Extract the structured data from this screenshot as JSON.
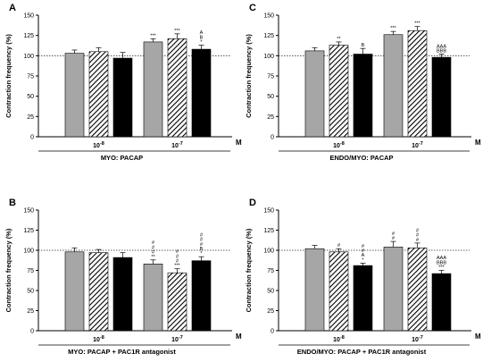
{
  "colors": {
    "bar1": "#a6a6a6",
    "bar2_hatch": "#000000",
    "bar3": "#000000",
    "dotted_ref": "#333333"
  },
  "chart_data": [
    {
      "panel": "A",
      "type": "bar",
      "ylabel": "Contraction frequency (%)",
      "ylim": [
        0,
        150
      ],
      "yticks": [
        0,
        25,
        50,
        75,
        100,
        125,
        150
      ],
      "reference_line": 100,
      "groups": [
        {
          "label_base": "10",
          "label_exp": "-8",
          "values": [
            103,
            105,
            97
          ],
          "errors": [
            4,
            5,
            7
          ],
          "annotations": [
            "",
            "",
            ""
          ]
        },
        {
          "label_base": "10",
          "label_exp": "-7",
          "values": [
            117,
            121,
            108
          ],
          "errors": [
            4,
            6,
            5
          ],
          "annotations": [
            "***",
            "***",
            "A\nB\n*"
          ]
        }
      ],
      "unit": "M",
      "caption": "MYO: PACAP"
    },
    {
      "panel": "C",
      "type": "bar",
      "ylabel": "Contraction frequency (%)",
      "ylim": [
        0,
        150
      ],
      "yticks": [
        0,
        25,
        50,
        75,
        100,
        125,
        150
      ],
      "reference_line": 100,
      "groups": [
        {
          "label_base": "10",
          "label_exp": "-8",
          "values": [
            106,
            113,
            102
          ],
          "errors": [
            4,
            4,
            7
          ],
          "annotations": [
            "",
            "**",
            "B"
          ]
        },
        {
          "label_base": "10",
          "label_exp": "-7",
          "values": [
            126,
            131,
            98
          ],
          "errors": [
            4,
            5,
            4
          ],
          "annotations": [
            "***",
            "***",
            "AAA\nBBB"
          ]
        }
      ],
      "unit": "M",
      "caption": "ENDO/MYO: PACAP"
    },
    {
      "panel": "B",
      "type": "bar",
      "ylabel": "Contraction frequency (%)",
      "ylim": [
        0,
        150
      ],
      "yticks": [
        0,
        25,
        50,
        75,
        100,
        125,
        150
      ],
      "reference_line": 100,
      "groups": [
        {
          "label_base": "10",
          "label_exp": "-8",
          "values": [
            98,
            97,
            91
          ],
          "errors": [
            5,
            4,
            6
          ],
          "annotations": [
            "",
            "",
            ""
          ]
        },
        {
          "label_base": "10",
          "label_exp": "-7",
          "values": [
            83,
            72,
            87
          ],
          "errors": [
            5,
            5,
            5
          ],
          "annotations": [
            "#\n#\n#\n**",
            "#\n#\n#\n***",
            "#\n#\n#\nB\n*"
          ]
        }
      ],
      "unit": "M",
      "caption": "MYO: PACAP + PAC1R antagonist"
    },
    {
      "panel": "D",
      "type": "bar",
      "ylabel": "Contraction frequency (%)",
      "ylim": [
        0,
        150
      ],
      "yticks": [
        0,
        25,
        50,
        75,
        100,
        125,
        150
      ],
      "reference_line": 100,
      "groups": [
        {
          "label_base": "10",
          "label_exp": "-8",
          "values": [
            102,
            98,
            81
          ],
          "errors": [
            4,
            4,
            3
          ],
          "annotations": [
            "",
            "#",
            "#\n#\nA\n*"
          ]
        },
        {
          "label_base": "10",
          "label_exp": "-7",
          "values": [
            104,
            103,
            71
          ],
          "errors": [
            7,
            6,
            4
          ],
          "annotations": [
            "#\n#",
            "#\n#\n#",
            "AAA\nBBB\n***"
          ]
        }
      ],
      "unit": "M",
      "caption": "ENDO/MYO: PACAP + PAC1R antagonist"
    }
  ]
}
